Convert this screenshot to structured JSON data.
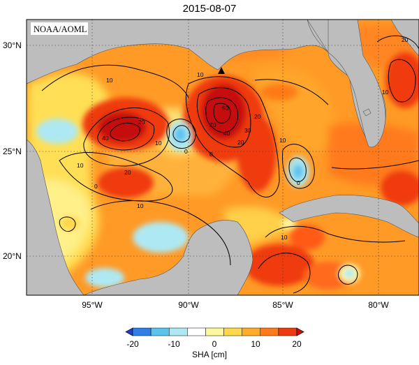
{
  "title": "2015-08-07",
  "source_badge": "NOAA/AOML",
  "colorbar": {
    "label": "SHA [cm]",
    "ticks": [
      "-20",
      "-10",
      "0",
      "10",
      "20"
    ],
    "colors": [
      "#1e3fc8",
      "#2f7fe6",
      "#5cc3ee",
      "#aee9f3",
      "#ffffff",
      "#fff7a0",
      "#ffd84a",
      "#ffac28",
      "#ff7a18",
      "#ef3a10",
      "#c60e0c"
    ]
  },
  "axes": {
    "lat_labels": [
      "30°N",
      "25°N",
      "20°N"
    ],
    "lon_labels": [
      "95°W",
      "90°W",
      "85°W",
      "80°W"
    ]
  },
  "contour_labels": [
    "10",
    "10",
    "10",
    "10",
    "10",
    "10",
    "10",
    "10",
    "20",
    "20",
    "20",
    "20",
    "20",
    "20",
    "30",
    "40",
    "40",
    "50",
    "0",
    "0",
    "0",
    "0"
  ],
  "colors": {
    "land": "#bdbdbd",
    "contour": "#000000",
    "grid": "#333333"
  }
}
